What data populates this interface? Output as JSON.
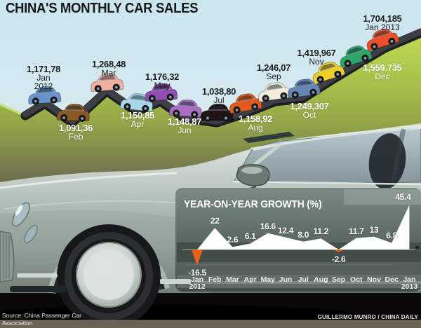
{
  "title": "CHINA'S MONTHLY CAR SALES",
  "sales": {
    "months": [
      {
        "value": "1,171,78",
        "label": "Jan",
        "year": "2012",
        "color": "#6a93cc",
        "label_style": "dark"
      },
      {
        "value": "1,091,36",
        "label": "Feb",
        "year": "",
        "color": "#8a5a26",
        "label_style": "light"
      },
      {
        "value": "1,268,48",
        "label": "Mar",
        "year": "",
        "color": "#f0b0a0",
        "label_style": "dark"
      },
      {
        "value": "1,150,85",
        "label": "Apr",
        "year": "",
        "color": "#a8d6e8",
        "label_style": "light"
      },
      {
        "value": "1,176,32",
        "label": "May",
        "year": "",
        "color": "#8f4fb2",
        "label_style": "dark"
      },
      {
        "value": "1,148,87",
        "label": "Jun",
        "year": "",
        "color": "#a76ec2",
        "label_style": "light"
      },
      {
        "value": "1,038,80",
        "label": "Jul",
        "year": "",
        "color": "#201418",
        "label_style": "dark"
      },
      {
        "value": "1,158,92",
        "label": "Aug",
        "year": "",
        "color": "#e25a20",
        "label_style": "light"
      },
      {
        "value": "1,246,07",
        "label": "Sep",
        "year": "",
        "color": "#f2ecd9",
        "label_style": "dark"
      },
      {
        "value": "1,249,307",
        "label": "Oct",
        "year": "",
        "color": "#6585b2",
        "label_style": "light"
      },
      {
        "value": "1,419,967",
        "label": "Nov",
        "year": "",
        "color": "#ecd028",
        "label_style": "dark"
      },
      {
        "value": "1,559.735",
        "label": "Dec",
        "year": "",
        "color": "#2ea668",
        "label_style": "light"
      },
      {
        "value": "1,704,185",
        "label": "Jan 2013",
        "year": "",
        "color": "#ee4e28",
        "label_style": "dark"
      }
    ]
  },
  "chart_data": [
    {
      "type": "pictorial-line",
      "title": "CHINA'S MONTHLY CAR SALES",
      "categories": [
        "Jan 2012",
        "Feb",
        "Mar",
        "Apr",
        "May",
        "Jun",
        "Jul",
        "Aug",
        "Sep",
        "Oct",
        "Nov",
        "Dec",
        "Jan 2013"
      ],
      "value_labels": [
        "1,171,78",
        "1,091,36",
        "1,268,48",
        "1,150,85",
        "1,176,32",
        "1,148,87",
        "1,038,80",
        "1,158,92",
        "1,246,07",
        "1,249,307",
        "1,419,967",
        "1,559.735",
        "1,704,185"
      ],
      "note": "monthly car sales drawn as colored cars driving along a hill road"
    },
    {
      "type": "area",
      "title": "YEAR-ON-YEAR GROWTH (%)",
      "categories": [
        "Jan 2012",
        "Feb",
        "Mar",
        "Apr",
        "May",
        "Jun",
        "Jul",
        "Aug",
        "Sep",
        "Oct",
        "Nov",
        "Dec",
        "Jan 2013"
      ],
      "values": [
        -16.5,
        22,
        2.6,
        6.1,
        16.6,
        12.4,
        8.0,
        11.2,
        -2.6,
        11.7,
        13,
        6.8,
        45.4
      ],
      "value_labels": [
        "-16.5",
        "22",
        "2.6",
        "6.1",
        "16.6",
        "12.4",
        "8.0",
        "11.2",
        "-2.6",
        "11.7",
        "13",
        "6.8",
        "45.4"
      ],
      "baseline": 0,
      "area_color": "#ffffff",
      "negative_color": "#e8611c",
      "legend_position": "none",
      "grid": false
    }
  ],
  "footer": {
    "source": "Source: China Passenger Car Association",
    "credit": "GUILLERMO MUNRO / CHINA DAILY"
  }
}
